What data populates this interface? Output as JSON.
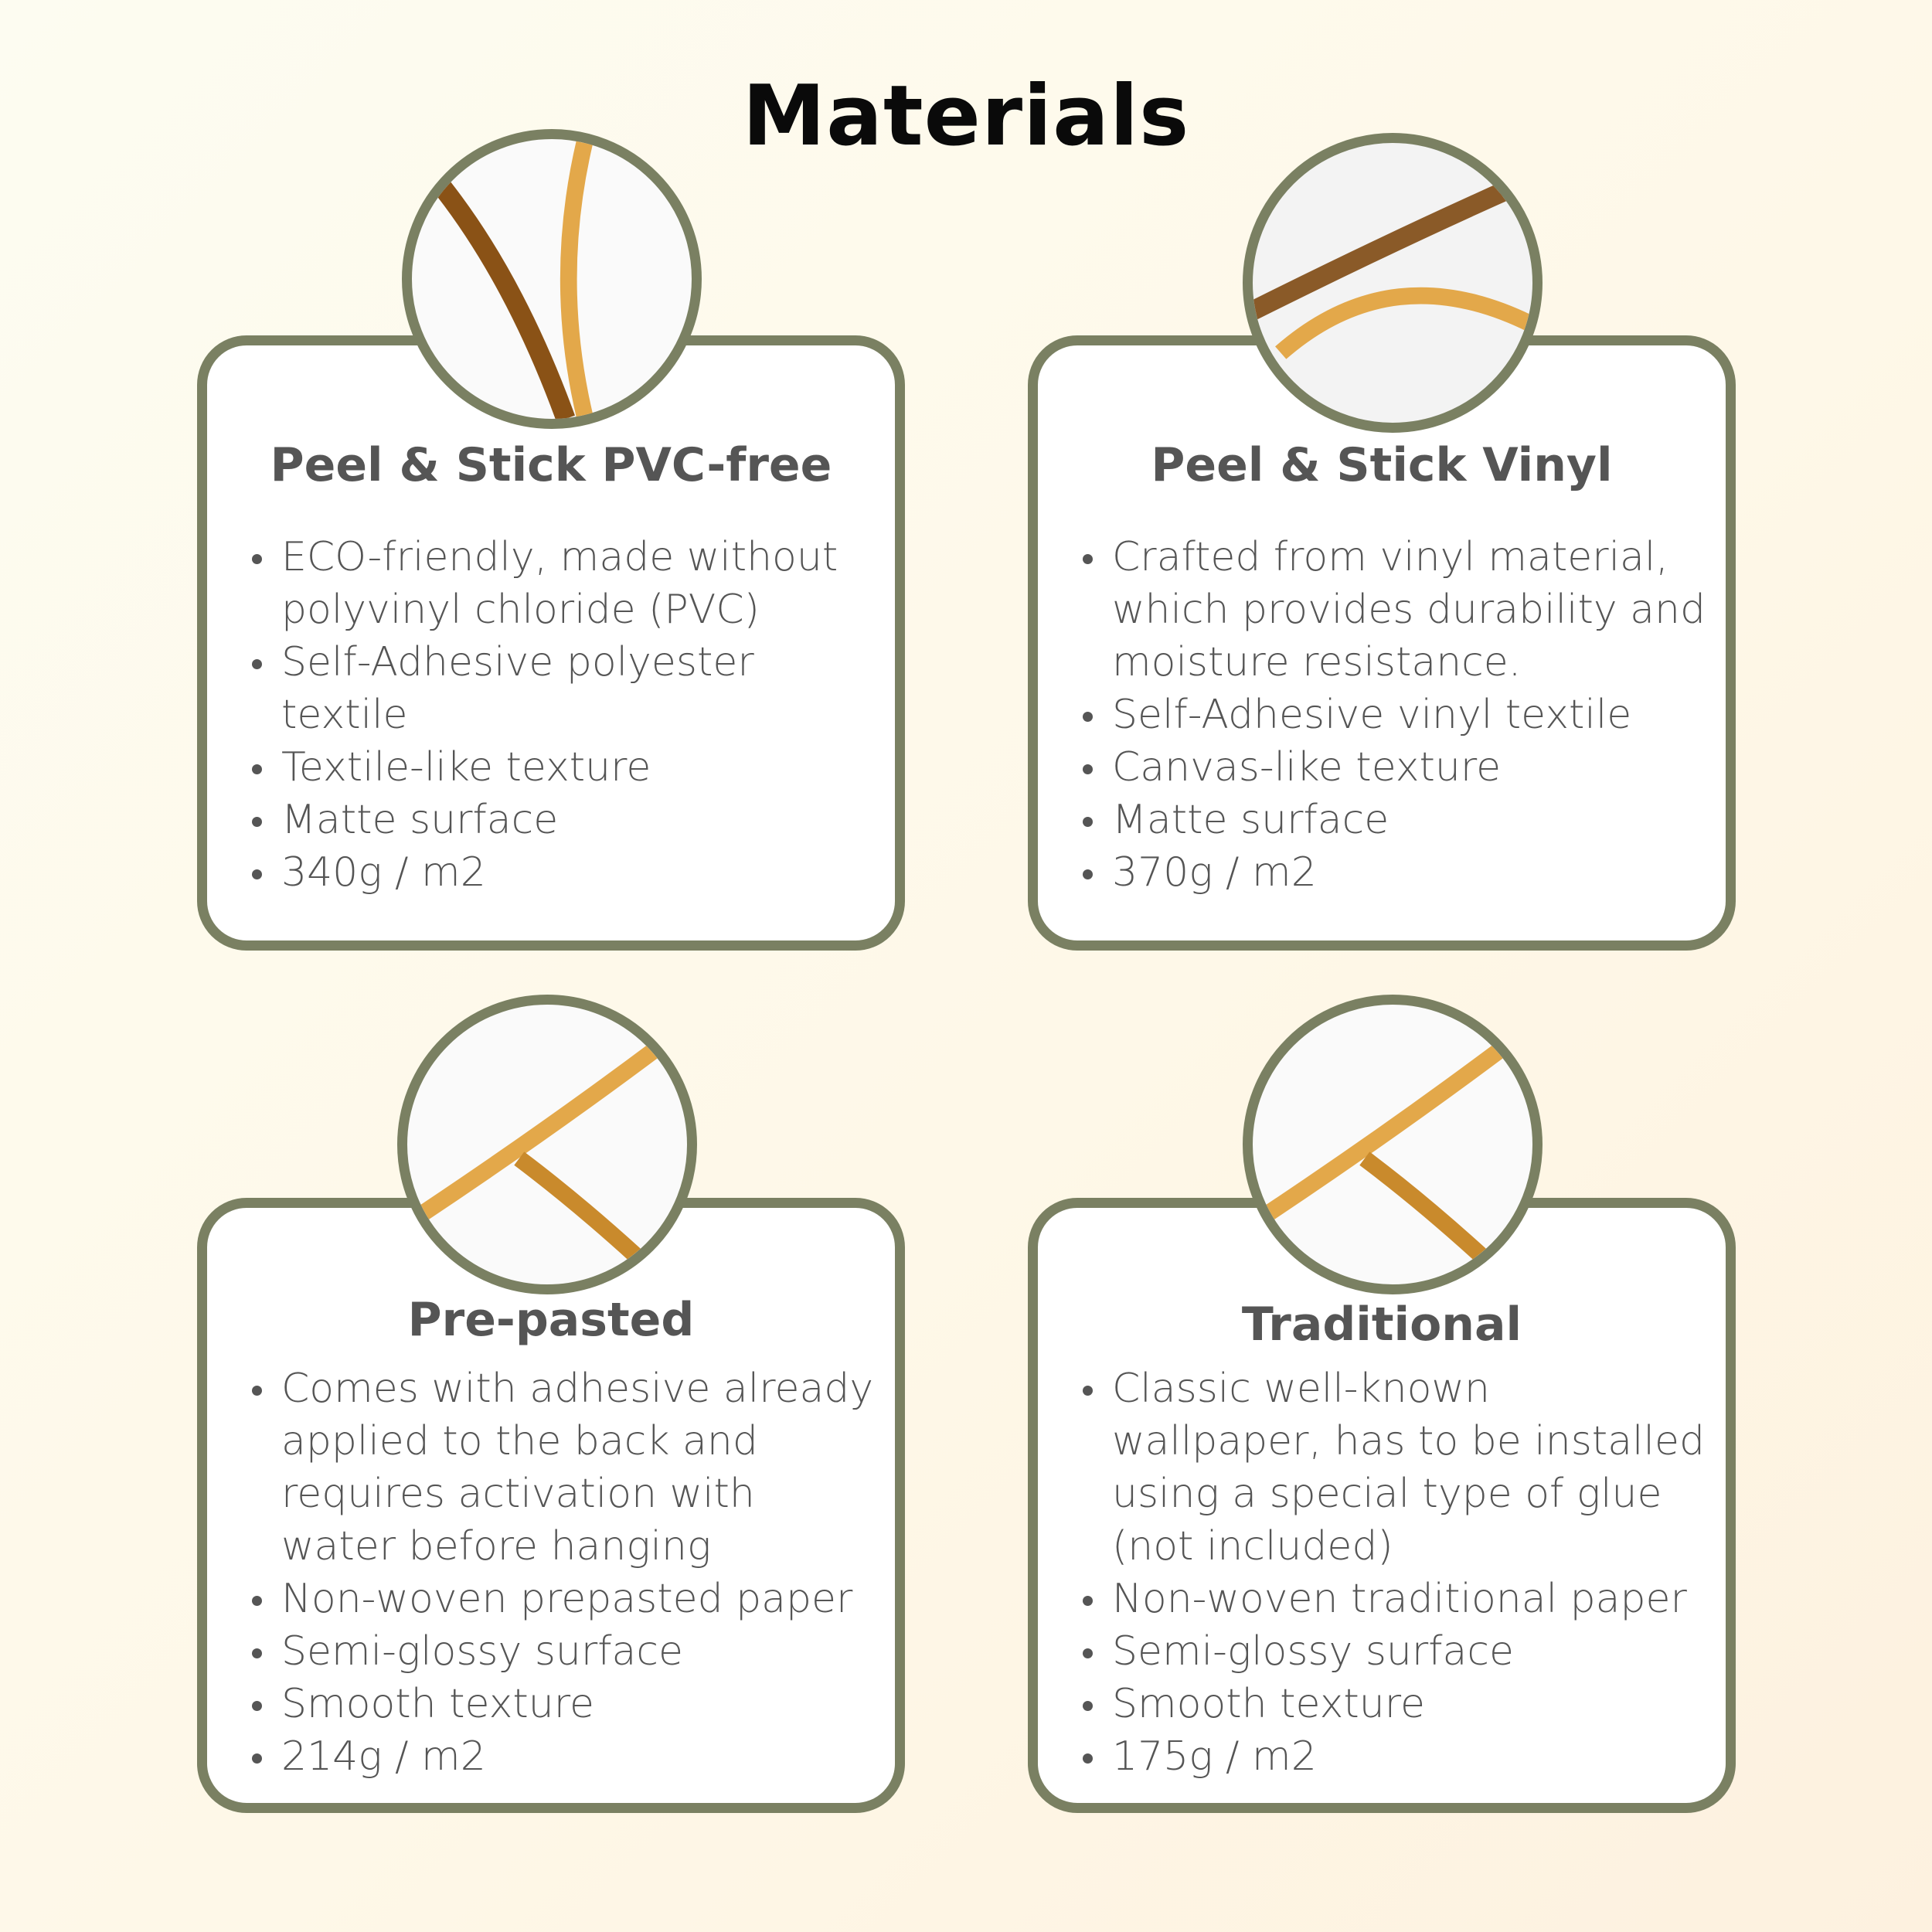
{
  "title": "Materials",
  "colors": {
    "border": "#7a8062",
    "text": "#555555",
    "accent_dark": "#8a5216",
    "accent_light": "#e3a84a"
  },
  "cards": [
    {
      "heading": "Peel & Stick PVC-free",
      "bullets": [
        "ECO-friendly, made without polyvinyl chloride (PVC)",
        "Self-Adhesive polyester textile",
        "Textile-like texture",
        "Matte surface",
        "340g / m2"
      ]
    },
    {
      "heading": "Peel & Stick Vinyl",
      "bullets": [
        "Crafted from vinyl material, which provides durability and moisture resistance.",
        "Self-Adhesive vinyl textile",
        "Canvas-like texture",
        "Matte surface",
        "370g / m2"
      ]
    },
    {
      "heading": "Pre-pasted",
      "bullets": [
        "Comes with adhesive already applied to the back and requires activation with water before hanging",
        "Non-woven prepasted paper",
        "Semi-glossy surface",
        "Smooth texture",
        "214g / m2"
      ]
    },
    {
      "heading": "Traditional",
      "bullets": [
        "Classic well-known wallpaper, has to be installed using a special type of glue (not included)",
        "Non-woven traditional paper",
        "Semi-glossy surface",
        "Smooth texture",
        "175g / m2"
      ]
    }
  ]
}
